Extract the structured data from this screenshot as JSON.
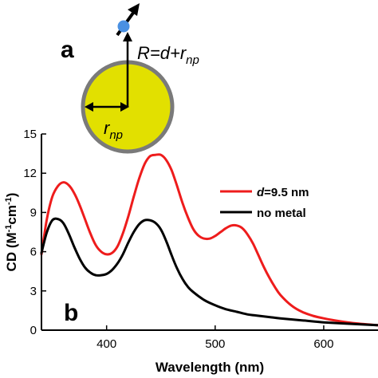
{
  "panels": {
    "a": "a",
    "b": "b"
  },
  "schematic": {
    "formula": {
      "lhs": "R",
      "eq": "=d+r",
      "sub": "np"
    },
    "radius_label": {
      "main": "r",
      "sub": "np"
    },
    "colors": {
      "sphere_fill": "#e2e000",
      "sphere_edge": "#7a7a7a",
      "dipole": "#4a90e2",
      "arrow": "#000000"
    }
  },
  "chart_data": {
    "type": "line",
    "xlabel": "Wavelength (nm)",
    "ylabel": {
      "pre": "CD (M",
      "sup1": "-1",
      "mid": "cm",
      "sup2": "-1",
      "post": ")"
    },
    "xlim": [
      340,
      650
    ],
    "ylim": [
      0,
      15
    ],
    "xticks": [
      400,
      500,
      600
    ],
    "yticks": [
      0,
      3,
      6,
      9,
      12,
      15
    ],
    "grid": false,
    "legend_position": "right",
    "series": [
      {
        "name": "d=9.5 nm",
        "name_parts": {
          "italic": "d",
          "rest": "=9.5 nm"
        },
        "color": "#ee1c1c",
        "x": [
          340,
          345,
          350,
          355,
          360,
          365,
          370,
          375,
          380,
          385,
          390,
          395,
          400,
          405,
          410,
          415,
          420,
          425,
          430,
          435,
          440,
          445,
          450,
          455,
          460,
          465,
          470,
          475,
          480,
          485,
          490,
          495,
          500,
          505,
          510,
          515,
          520,
          525,
          530,
          535,
          540,
          545,
          550,
          555,
          560,
          570,
          580,
          590,
          600,
          610,
          620,
          630,
          640,
          650
        ],
        "values": [
          5.8,
          8.5,
          10.2,
          11.0,
          11.3,
          11.1,
          10.5,
          9.6,
          8.5,
          7.4,
          6.5,
          6.0,
          5.8,
          5.9,
          6.4,
          7.4,
          8.7,
          10.2,
          11.6,
          12.7,
          13.3,
          13.4,
          13.4,
          13.0,
          12.2,
          11.0,
          9.7,
          8.6,
          7.7,
          7.2,
          7.0,
          7.0,
          7.2,
          7.5,
          7.8,
          8.0,
          8.0,
          7.8,
          7.3,
          6.6,
          5.7,
          4.8,
          4.0,
          3.3,
          2.7,
          1.9,
          1.4,
          1.1,
          0.9,
          0.75,
          0.62,
          0.52,
          0.44,
          0.38
        ]
      },
      {
        "name": "no metal",
        "color": "#000000",
        "x": [
          340,
          345,
          350,
          355,
          360,
          365,
          370,
          375,
          380,
          385,
          390,
          395,
          400,
          405,
          410,
          415,
          420,
          425,
          430,
          435,
          440,
          445,
          450,
          455,
          460,
          465,
          470,
          475,
          480,
          490,
          500,
          510,
          520,
          530,
          540,
          550,
          560,
          580,
          600,
          620,
          640,
          650
        ],
        "values": [
          5.9,
          7.5,
          8.4,
          8.5,
          8.2,
          7.4,
          6.4,
          5.5,
          4.8,
          4.4,
          4.2,
          4.2,
          4.3,
          4.6,
          5.1,
          5.8,
          6.7,
          7.5,
          8.1,
          8.4,
          8.4,
          8.2,
          7.7,
          6.8,
          5.7,
          4.7,
          3.9,
          3.3,
          2.9,
          2.3,
          1.9,
          1.6,
          1.4,
          1.2,
          1.1,
          1.0,
          0.9,
          0.75,
          0.6,
          0.5,
          0.42,
          0.38
        ]
      }
    ]
  }
}
